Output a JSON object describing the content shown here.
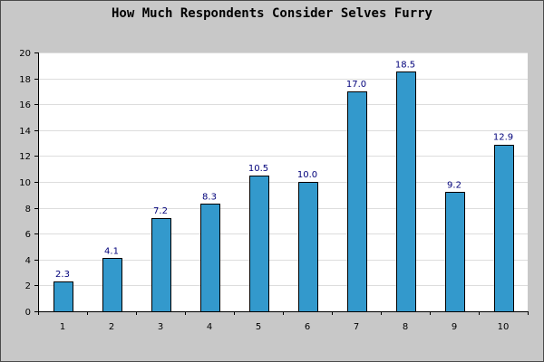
{
  "chart_data": {
    "type": "bar",
    "title": "How Much Respondents Consider Selves Furry",
    "xlabel": "",
    "ylabel": "",
    "categories": [
      "1",
      "2",
      "3",
      "4",
      "5",
      "6",
      "7",
      "8",
      "9",
      "10"
    ],
    "values": [
      2.3,
      4.1,
      7.2,
      8.3,
      10.5,
      10.0,
      17.0,
      18.5,
      9.2,
      12.9
    ],
    "data_labels": [
      "2.3",
      "4.1",
      "7.2",
      "8.3",
      "10.5",
      "10.0",
      "17.0",
      "18.5",
      "9.2",
      "12.9"
    ],
    "ylim": [
      0,
      20
    ],
    "y_ticks": [
      0,
      2,
      4,
      6,
      8,
      10,
      12,
      14,
      16,
      18,
      20
    ],
    "grid": true,
    "legend": "none",
    "colors": {
      "bar_fill": "#3399cc",
      "bar_stroke": "#000000",
      "plot_background": "#ffffff",
      "frame_background": "#c8c8c8",
      "grid": "#dddddd",
      "data_label": "#00007a"
    }
  }
}
